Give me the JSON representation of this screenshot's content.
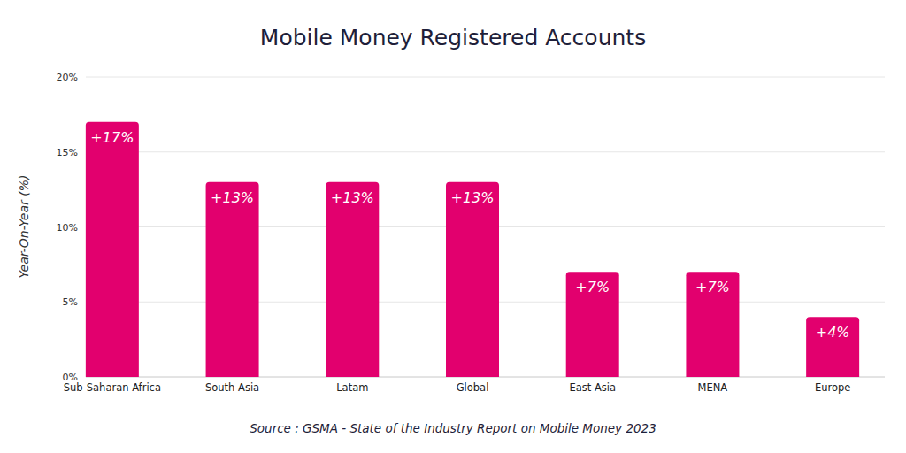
{
  "chart_data": {
    "type": "bar",
    "title": "Mobile Money Registered Accounts",
    "y_label": "Year-On-Year (%)",
    "source": "Source : GSMA - State of the Industry Report on Mobile Money 2023",
    "categories": [
      "Sub-Saharan Africa",
      "South Asia",
      "Latam",
      "Global",
      "East Asia",
      "MENA",
      "Europe"
    ],
    "values": [
      17,
      13,
      13,
      13,
      7,
      7,
      4
    ],
    "value_labels": [
      "+17%",
      "+13%",
      "+13%",
      "+13%",
      "+7%",
      "+7%",
      "+4%"
    ],
    "color": "#e2006e",
    "ylim": [
      0,
      20
    ],
    "yticks": [
      {
        "value": 0,
        "label": "0%"
      },
      {
        "value": 5,
        "label": "5%"
      },
      {
        "value": 10,
        "label": "10%"
      },
      {
        "value": 15,
        "label": "15%"
      },
      {
        "value": 20,
        "label": "20%"
      }
    ],
    "grid": true,
    "data_labels": true
  }
}
